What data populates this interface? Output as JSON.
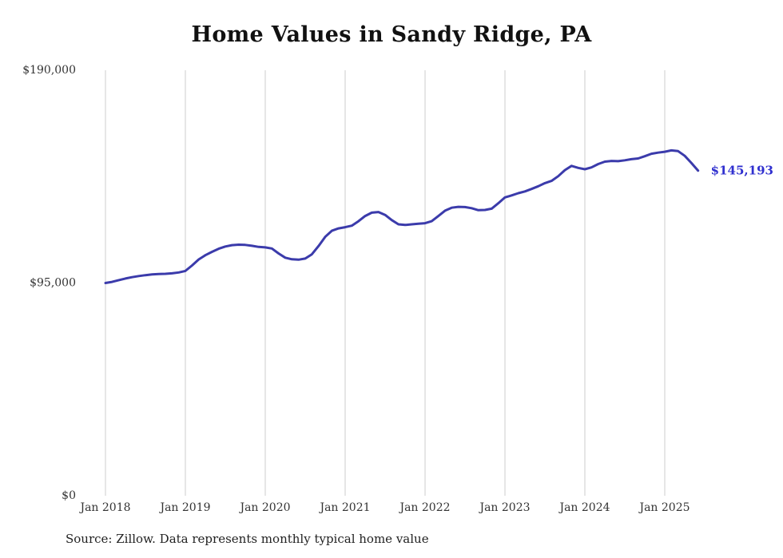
{
  "page": {
    "title": "Home Values in Sandy Ridge, PA",
    "source_note": "Source: Zillow. Data represents monthly typical home value"
  },
  "colors": {
    "line": "#3b3bab",
    "end_label": "#3030cf",
    "grid": "#cccccc",
    "tick_text": "#333333"
  },
  "chart_data": {
    "type": "line",
    "title": "Home Values in Sandy Ridge, PA",
    "x_start": "2018-01",
    "frequency": "monthly",
    "unit": "USD",
    "ylim": [
      0,
      190000
    ],
    "grid": "vertical-only",
    "legend": false,
    "end_label": "$145,193",
    "end_value": 145193,
    "x_tick_labels": [
      "Jan 2018",
      "Jan 2019",
      "Jan 2020",
      "Jan 2021",
      "Jan 2022",
      "Jan 2023",
      "Jan 2024",
      "Jan 2025"
    ],
    "y_ticks": [
      {
        "label": "$0",
        "value": 0
      },
      {
        "label": "$95,000",
        "value": 95000
      },
      {
        "label": "$190,000",
        "value": 190000
      }
    ],
    "series": [
      {
        "name": "Typical home value",
        "values": [
          95000,
          95500,
          96300,
          97000,
          97600,
          98100,
          98500,
          98800,
          99000,
          99100,
          99300,
          99700,
          100400,
          102800,
          105500,
          107400,
          108900,
          110300,
          111300,
          111900,
          112100,
          112000,
          111600,
          111100,
          110900,
          110400,
          108200,
          106300,
          105600,
          105400,
          105900,
          107800,
          111500,
          115600,
          118300,
          119400,
          119900,
          120600,
          122600,
          124900,
          126400,
          126700,
          125400,
          123100,
          121200,
          120900,
          121200,
          121500,
          121700,
          122600,
          124900,
          127300,
          128600,
          129000,
          128900,
          128400,
          127500,
          127600,
          128200,
          130600,
          133200,
          134100,
          135100,
          135900,
          137000,
          138200,
          139600,
          140600,
          142700,
          145400,
          147300,
          146400,
          145800,
          146600,
          148100,
          149200,
          149500,
          149400,
          149800,
          150300,
          150600,
          151600,
          152700,
          153200,
          153600,
          154200,
          153900,
          151800,
          148600,
          145193
        ]
      }
    ]
  }
}
